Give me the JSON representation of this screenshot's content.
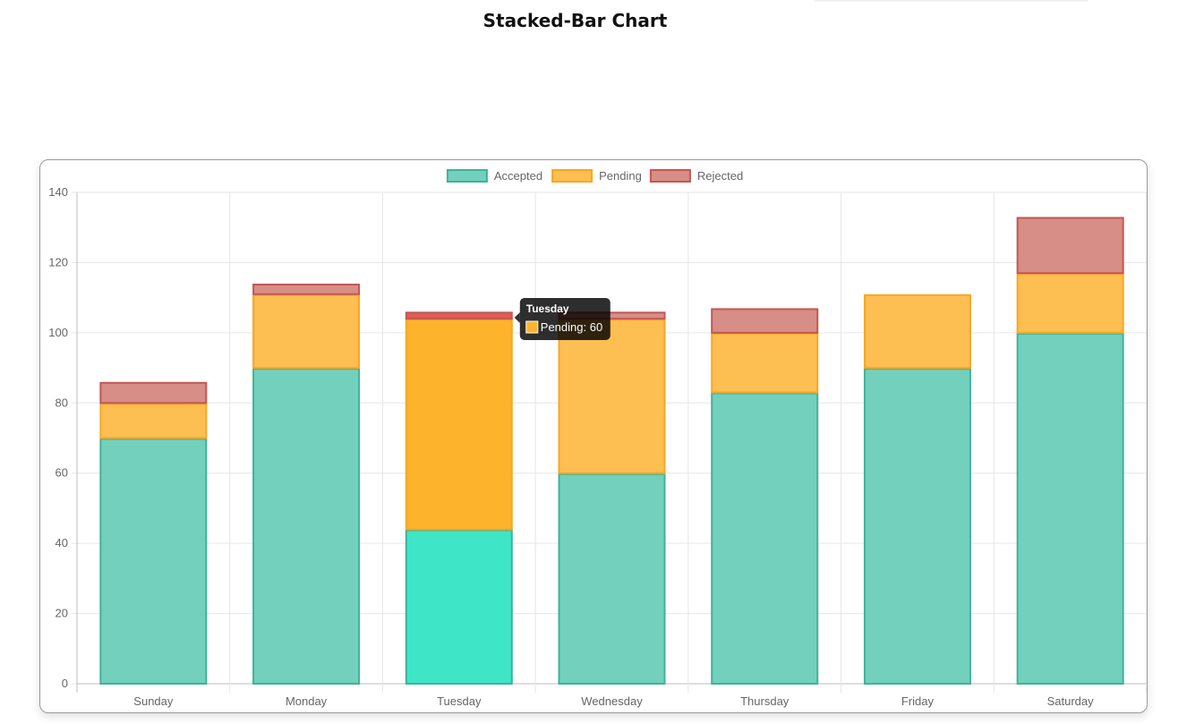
{
  "page": {
    "title": "Stacked-Bar Chart"
  },
  "chart_data": {
    "type": "bar",
    "stacked": true,
    "categories": [
      "Sunday",
      "Monday",
      "Tuesday",
      "Wednesday",
      "Thursday",
      "Friday",
      "Saturday"
    ],
    "series": [
      {
        "name": "Accepted",
        "values": [
          70,
          90,
          44,
          60,
          83,
          90,
          100
        ],
        "fill": "#73d0bc",
        "border": "#40b29a",
        "highlight_fill": "#3ee5c6"
      },
      {
        "name": "Pending",
        "values": [
          10,
          21,
          60,
          44,
          17,
          21,
          17
        ],
        "fill": "#fdbe52",
        "border": "#f8a723",
        "highlight_fill": "#feb32d"
      },
      {
        "name": "Rejected",
        "values": [
          6,
          3,
          2,
          2,
          7,
          0,
          16
        ],
        "fill": "#d68e86",
        "border": "#c45656",
        "highlight_fill": "#e05d52"
      }
    ],
    "ylim": [
      0,
      140
    ],
    "yticks": [
      0,
      20,
      40,
      60,
      80,
      100,
      120,
      140
    ],
    "grid": true,
    "legend_position": "top",
    "highlighted_category": "Tuesday",
    "tooltip": {
      "title": "Tuesday",
      "text": "Pending: 60",
      "swatch_color": "#feb32d"
    }
  }
}
